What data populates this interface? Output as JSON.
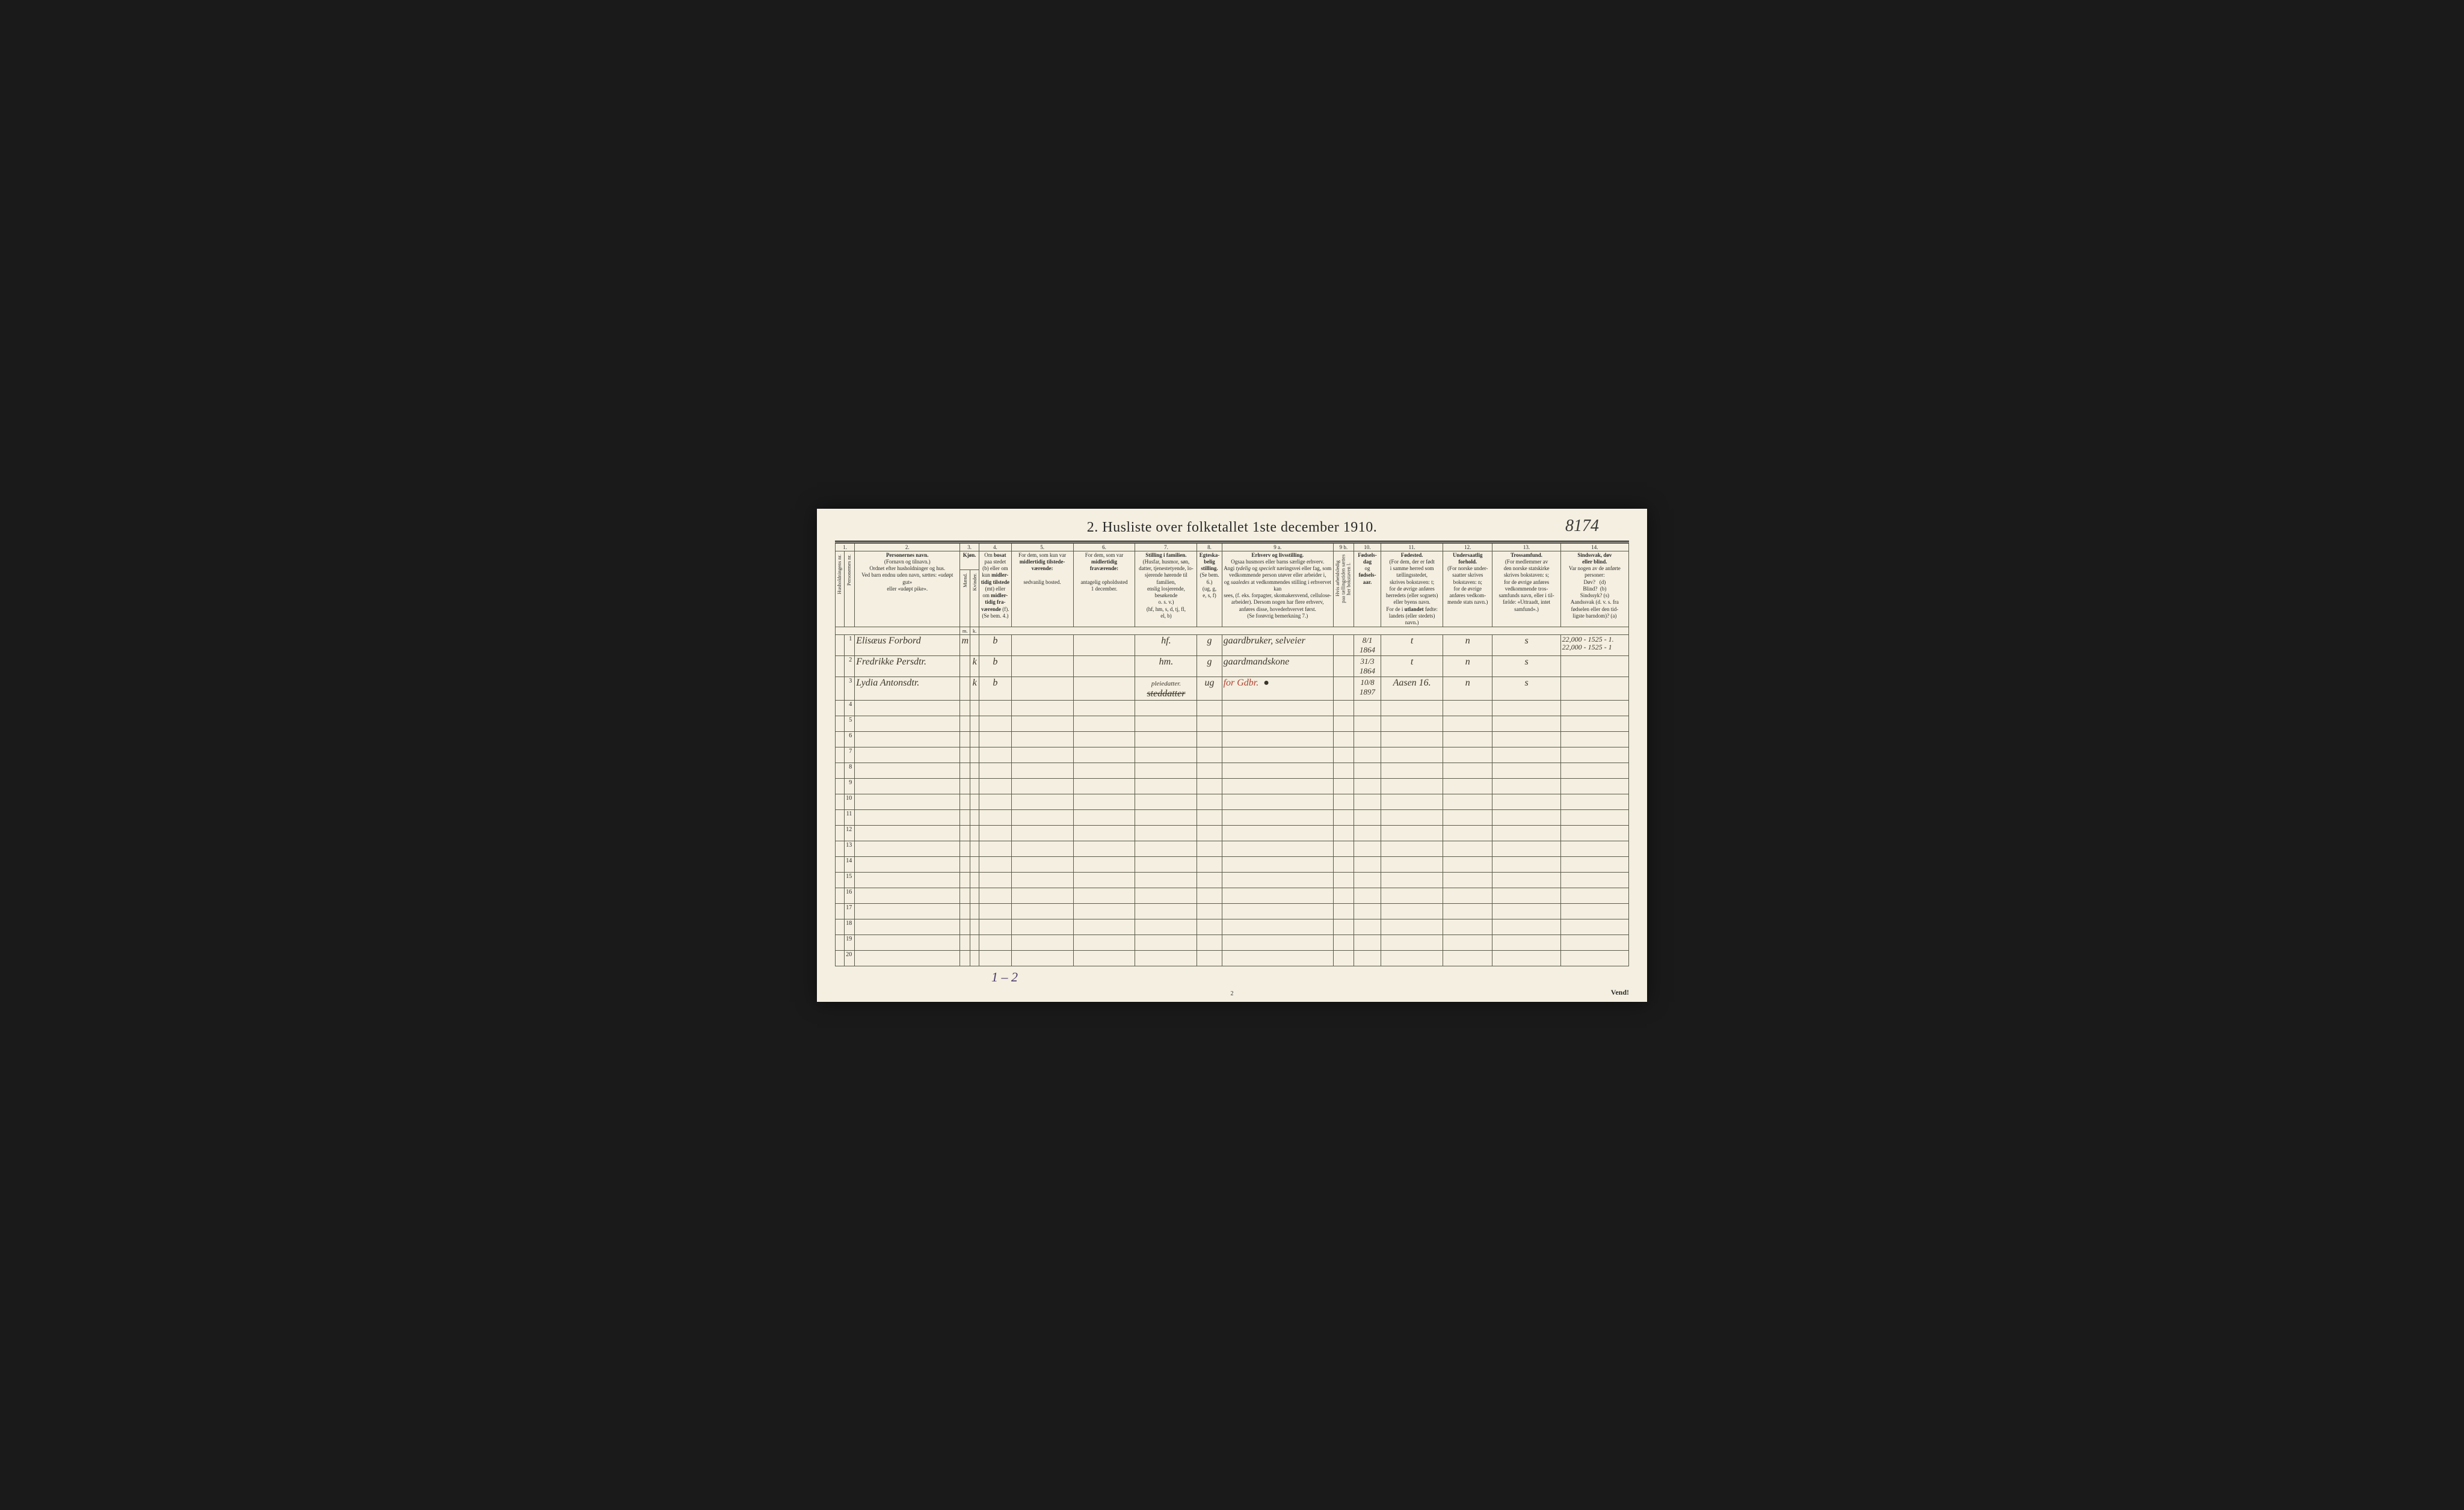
{
  "title": "2.  Husliste over folketallet 1ste december 1910.",
  "topRightNumber": "8174",
  "colNums": [
    "1.",
    "2.",
    "3.",
    "4.",
    "5.",
    "6.",
    "7.",
    "8.",
    "9 a.",
    "9 b.",
    "10.",
    "11.",
    "12.",
    "13.",
    "14."
  ],
  "headers": {
    "h1": "Husholdningens nr.",
    "h2": "Personernes nr.",
    "names": "<b>Personernes navn.</b><br>(Fornavn og tilnavn.)<br>Ordnet efter husholdninger og hus.<br>Ved barn endnu uden navn, sættes: «udøpt gut»<br>eller «udøpt pike».",
    "kjon": "<b>Kjøn.</b>",
    "maend": "Mænd.",
    "kvinder": "Kvinder.",
    "bosat": "Om <b>bosat</b><br>paa stedet<br>(b) eller om<br>kun <b>midler-<br>tidig tilstede</b><br>(mt) eller<br>om <b>midler-<br>tidig fra-<br>værende</b> (f).<br>(Se bem. 4.)",
    "col5": "For dem, som kun var<br><b>midlertidig tilstede-<br>værende:</b><br><br>sedvanlig bosted.",
    "col6": "For dem, som var<br><b>midlertidig<br>fraværende:</b><br><br>antagelig opholdssted<br>1 december.",
    "col7": "<b>Stilling i familien.</b><br>(Husfar, husmor, søn,<br>datter, tjenestetyende, lo-<br>sjerende hørende til familien,<br>enslig losjerende, besøkende<br>o. s. v.)<br>(hf, hm, s, d, tj, fl,<br>el, b)",
    "col8": "<b>Egteska-<br>belig<br>stilling.</b><br>(Se bem. 6.)<br>(ug, g,<br>e, s, f)",
    "col9a": "<b>Erhverv og livsstilling.</b><br>Ogsaa husmors eller barns særlige erhverv.<br>Angi <i>tydelig</i> og <i>specielt</i> næringsvei eller fag, som<br>vedkommende person utøver eller arbeider i,<br>og <i>saaledes</i> at vedkommendes stilling i erhvervet kan<br>sees, (f. eks. forpagter, skomakersvend, cellulose-<br>arbeider).  Dersom nogen har flere erhverv,<br>anføres disse, hovederhvervet først.<br>(Se forøvrig bemerkning 7.)",
    "col9b": "Hvis arbeidsledig<br>paa tællingstiden sættes<br>her bokstaven l.",
    "col10": "<b>Fødsels-<br>dag</b><br>og<br><b>fødsels-<br>aar.</b>",
    "col11": "<b>Fødested.</b><br>(For dem, der er født<br>i samme herred som<br>tællingsstedet,<br>skrives bokstaven: t;<br>for de øvrige anføres<br>herredets (eller sognets)<br>eller byens navn.<br>For de i <b>utlandet</b> fødte:<br>landets (eller stedets)<br>navn.)",
    "col12": "<b>Undersaatlig<br>forhold.</b><br>(For norske under-<br>saatter skrives<br>bokstaven: n;<br>for de øvrige<br>anføres vedkom-<br>mende stats navn.)",
    "col13": "<b>Trossamfund.</b><br>(For medlemmer av<br>den norske statskirke<br>skrives bokstaven: s;<br>for de øvrige anføres<br>vedkommende tros-<br>samfunds navn, eller i til-<br>fælde: «Uttraadt, intet<br>samfund».)",
    "col14": "<b>Sindssvak, døv<br>eller blind.</b><br>Var nogen av de anførte<br>personer:<br>Døv?&nbsp;&nbsp;&nbsp;(d)<br>Blind?&nbsp;&nbsp;(b)<br>Sindssyk? (s)<br>Aandssvak (d. v. s. fra<br>fødselen eller den tid-<br>ligste barndom)? (a)",
    "mk_m": "m.",
    "mk_k": "k."
  },
  "rows": [
    {
      "n": "1",
      "name": "Elisæus Forbord",
      "sexM": "m",
      "sexK": "",
      "bosat": "b",
      "c5": "",
      "c6": "",
      "fam": "hf.",
      "egt": "g",
      "erhv": "gaardbruker, selveier",
      "c9b": "",
      "fd": "8/1 1864",
      "fsted": "t",
      "und": "n",
      "tros": "s",
      "c14": "22,000 - 1525 - 1.<br>22,000 - 1525 - 1"
    },
    {
      "n": "2",
      "name": "Fredrikke Persdtr.",
      "sexM": "",
      "sexK": "k",
      "bosat": "b",
      "c5": "",
      "c6": "",
      "fam": "hm.",
      "egt": "g",
      "erhv": "gaardmandskone",
      "c9b": "",
      "fd": "31/3 1864",
      "fsted": "t",
      "und": "n",
      "tros": "s",
      "c14": ""
    },
    {
      "n": "3",
      "name": "Lydia Antonsdtr.",
      "sexM": "",
      "sexK": "k",
      "bosat": "b",
      "c5": "",
      "c6": "",
      "fam": "<span class='small-note'>pleiedatter.</span><br><span class='strike'>steddatter</span>",
      "egt": "ug",
      "erhv": "<span class='red'>for Gdbr.</span>&nbsp;&nbsp;●",
      "c9b": "",
      "fd": "10/8 1897",
      "fsted": "Aasen 16.",
      "und": "n",
      "tros": "s",
      "c14": ""
    }
  ],
  "emptyRows": [
    "4",
    "5",
    "6",
    "7",
    "8",
    "9",
    "10",
    "11",
    "12",
    "13",
    "14",
    "15",
    "16",
    "17",
    "18",
    "19",
    "20"
  ],
  "footerCenter": "2",
  "vend": "Vend!",
  "annotation": "1 – 2"
}
